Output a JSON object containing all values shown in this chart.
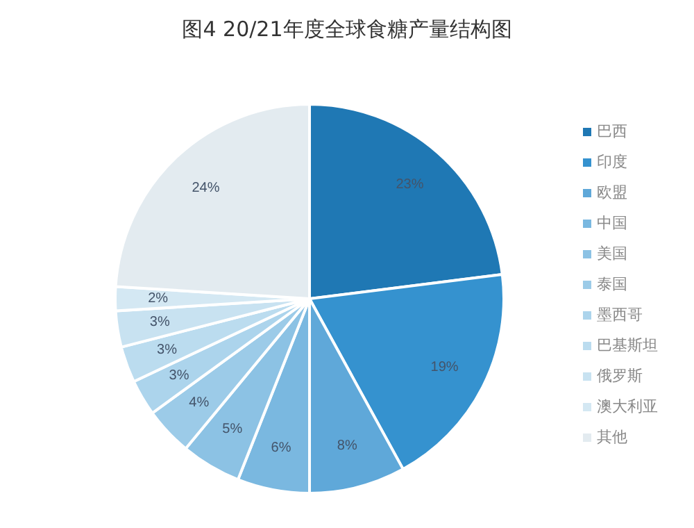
{
  "chart_data": {
    "type": "pie",
    "title": "图4   20/21年度全球食糖产量结构图",
    "categories": [
      "巴西",
      "印度",
      "欧盟",
      "中国",
      "美国",
      "泰国",
      "墨西哥",
      "巴基斯坦",
      "俄罗斯",
      "澳大利亚",
      "其他"
    ],
    "values": [
      23,
      19,
      8,
      6,
      5,
      4,
      3,
      3,
      3,
      2,
      24
    ],
    "value_labels": [
      "23%",
      "19%",
      "8%",
      "6%",
      "5%",
      "4%",
      "3%",
      "3%",
      "3%",
      "2%",
      "24%"
    ],
    "colors": [
      "#1f78b4",
      "#3592cf",
      "#5fa8d9",
      "#7ab8e0",
      "#8cc2e4",
      "#9ccbe8",
      "#acd4ec",
      "#bbdcef",
      "#c8e2f1",
      "#d4e8f3",
      "#e3ebf0"
    ],
    "legend": "right"
  }
}
